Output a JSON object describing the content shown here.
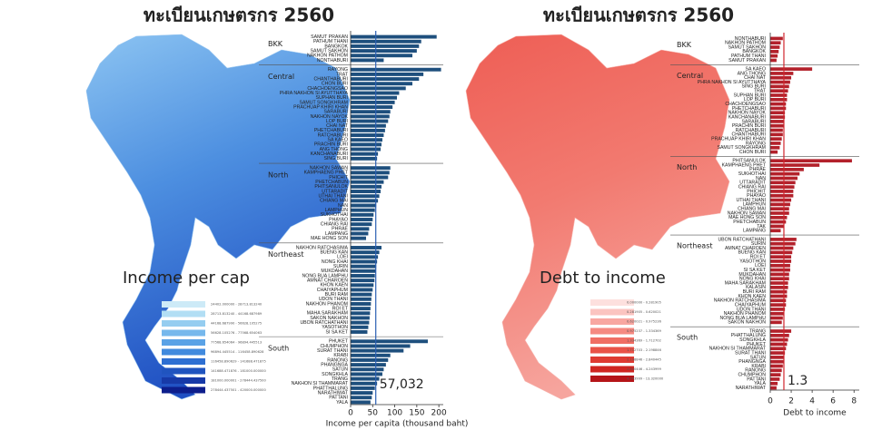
{
  "chart_data": [
    {
      "type": "bar",
      "orientation": "horizontal",
      "title": "ทะเบียนเกษตรกร 2560",
      "xlabel": "Income per capita (thousand baht)",
      "color": "#1e4f7d",
      "xlim": [
        0,
        210
      ],
      "xticks": [
        0,
        50,
        100,
        150,
        200
      ],
      "reference_line": {
        "value": 57.032,
        "label": "57,032",
        "color": "#2b5fb3"
      },
      "groups": [
        {
          "label": "BKK",
          "categories": [
            "SAMUT PRAKAN",
            "PATHUM THANI",
            "BANGKOK",
            "SAMUT SAKHON",
            "NAKHON PATHOM",
            "NONTHABURI"
          ],
          "values": [
            195,
            160,
            155,
            150,
            140,
            75
          ]
        },
        {
          "label": "Central",
          "categories": [
            "RAYONG",
            "TRAT",
            "CHANTHABURI",
            "CHON BURI",
            "CHACHOENGSAO",
            "PHRA NAKHON SI AYUTTHAYA",
            "SUPHAN BURI",
            "SAMUT SONGKHRAM",
            "PRACHUAP KHIRI KHAN",
            "SARABURI",
            "NAKHON NAYOK",
            "LOP BURI",
            "CHAI NAT",
            "PHETCHABURI",
            "RATCHABURI",
            "SA KAEO",
            "PRACHIN BURI",
            "ANG THONG",
            "KANCHANABURI",
            "SING BURI"
          ],
          "values": [
            205,
            165,
            155,
            140,
            125,
            110,
            105,
            100,
            95,
            90,
            88,
            85,
            80,
            78,
            75,
            72,
            70,
            68,
            62,
            60
          ]
        },
        {
          "label": "North",
          "categories": [
            "NAKHON SAWAN",
            "KAMPHAENG PHET",
            "PHICHIT",
            "PHETCHABUN",
            "PHITSANULOK",
            "UTTARADIT",
            "UTHAI THANI",
            "CHIANG MAI",
            "NAN",
            "LAMPHUN",
            "SUKHOTHAI",
            "PHAYAO",
            "CHIANG RAI",
            "PHRAE",
            "LAMPANG",
            "MAE HONG SON"
          ],
          "values": [
            90,
            88,
            85,
            75,
            70,
            68,
            65,
            62,
            58,
            55,
            52,
            50,
            48,
            42,
            40,
            35
          ]
        },
        {
          "label": "Northeast",
          "categories": [
            "NAKHON RATCHASIMA",
            "BUENG KAN",
            "LOEI",
            "NONG KHAI",
            "SURIN",
            "MUKDAHAN",
            "NONG BUA LAMPHU",
            "AMNAT CHAROEN",
            "KHON KAEN",
            "CHAIYAPHUM",
            "BURI RAM",
            "UDON THANI",
            "NAKHON PHANOM",
            "ROI ET",
            "MAHA SARAKHAM",
            "SAKON NAKHON",
            "UBON RATCHATHANI",
            "YASOTHON",
            "SI SA KET"
          ],
          "values": [
            70,
            65,
            62,
            60,
            58,
            57,
            55,
            54,
            52,
            50,
            48,
            47,
            46,
            45,
            44,
            43,
            42,
            40,
            38
          ]
        },
        {
          "label": "South",
          "categories": [
            "PHUKET",
            "CHUMPHON",
            "SURAT THANI",
            "KRABI",
            "RANONG",
            "PHANGNGA",
            "SATUN",
            "SONGKHLA",
            "TRANG",
            "NAKHON SI THAMMARAT",
            "PHATTHALUNG",
            "NARATHIWAT",
            "PATTANI",
            "YALA"
          ],
          "values": [
            175,
            135,
            120,
            90,
            85,
            80,
            75,
            72,
            65,
            60,
            55,
            50,
            48,
            45
          ]
        }
      ]
    },
    {
      "type": "bar",
      "orientation": "horizontal",
      "title": "ทะเบียนเกษตรกร 2560",
      "xlabel": "Debt to income",
      "color": "#b3212b",
      "xlim": [
        0,
        8.5
      ],
      "xticks": [
        0,
        2,
        4,
        6,
        8
      ],
      "reference_line": {
        "value": 1.3,
        "label": "1.3",
        "color": "#d0262e"
      },
      "groups": [
        {
          "label": "BKK",
          "categories": [
            "NONTHABURI",
            "NAKHON PATHOM",
            "SAMUT SAKHON",
            "BANGKOK",
            "PATHUM THANI",
            "SAMUT PRAKAN"
          ],
          "values": [
            1.2,
            1.0,
            0.9,
            0.8,
            0.7,
            0.6
          ]
        },
        {
          "label": "Central",
          "categories": [
            "SA KAEO",
            "ANG THONG",
            "CHAI NAT",
            "PHRA NAKHON SI AYUTTHAYA",
            "SING BURI",
            "TRAT",
            "SUPHAN BURI",
            "LOP BURI",
            "CHACHOENGSAO",
            "PHETCHABURI",
            "NAKHON NAYOK",
            "KANCHANABURI",
            "SARABURI",
            "PRACHIN BURI",
            "RATCHABURI",
            "CHANTHABURI",
            "PRACHUAP KHIRI KHAN",
            "RAYONG",
            "SAMUT SONGKHRAM",
            "CHON BURI"
          ],
          "values": [
            4.0,
            2.2,
            2.0,
            1.9,
            1.8,
            1.7,
            1.6,
            1.6,
            1.5,
            1.5,
            1.4,
            1.4,
            1.3,
            1.3,
            1.2,
            1.2,
            1.1,
            1.0,
            0.9,
            0.7
          ]
        },
        {
          "label": "North",
          "categories": [
            "PHITSANULOK",
            "KAMPHAENG PHET",
            "PHRAE",
            "SUKHOTHAI",
            "NAN",
            "UTTARADIT",
            "CHIANG RAI",
            "PHICHIT",
            "PHAYAO",
            "UTHAI THANI",
            "LAMPHUN",
            "CHIANG MAI",
            "NAKHON SAWAN",
            "MAE HONG SON",
            "PHETCHABUN",
            "TAK",
            "LAMPANG"
          ],
          "values": [
            7.8,
            4.7,
            3.2,
            2.8,
            2.6,
            2.4,
            2.3,
            2.2,
            2.2,
            2.0,
            1.9,
            1.8,
            1.8,
            1.6,
            1.5,
            1.3,
            1.0
          ]
        },
        {
          "label": "Northeast",
          "categories": [
            "UBON RATCHATHANI",
            "SURIN",
            "AMNAT CHAROEN",
            "BUENG KAN",
            "ROI ET",
            "YASOTHON",
            "LOEI",
            "SI SA KET",
            "MUKDAHAN",
            "NONG KHAI",
            "MAHA SARAKHAM",
            "KALASIN",
            "BURI RAM",
            "KHON KAEN",
            "NAKHON RATCHASIMA",
            "CHAIYAPHUM",
            "UDON THANI",
            "NAKHON PHANOM",
            "NONG BUA LAMPHU",
            "SAKON NAKHON"
          ],
          "values": [
            2.5,
            2.4,
            2.2,
            2.1,
            2.0,
            2.0,
            1.9,
            1.9,
            1.8,
            1.8,
            1.7,
            1.7,
            1.6,
            1.6,
            1.5,
            1.5,
            1.4,
            1.3,
            1.2,
            1.1
          ]
        },
        {
          "label": "South",
          "categories": [
            "TRANG",
            "PHATTHALUNG",
            "SONGKHLA",
            "PHUKET",
            "NAKHON SI THAMMARAT",
            "SURAT THANI",
            "SATUN",
            "PHANGNGA",
            "KRABI",
            "RANONG",
            "CHUMPHON",
            "PATTANI",
            "YALA",
            "NARATHIWAT"
          ],
          "values": [
            2.0,
            1.8,
            1.7,
            1.6,
            1.5,
            1.4,
            1.3,
            1.3,
            1.2,
            1.1,
            1.0,
            0.9,
            0.7,
            0.6
          ]
        }
      ]
    }
  ],
  "maps": [
    {
      "title": "Income per cap",
      "legend": [
        {
          "label": "24402.000000 - 28713.813240",
          "color": "#cdeaf7"
        },
        {
          "label": "28713.813240 - 44168.687989",
          "color": "#b2def4"
        },
        {
          "label": "44168.687990 - 56628.105275",
          "color": "#95cdf0"
        },
        {
          "label": "56628.105276 - 77568.654063",
          "color": "#76b8ec"
        },
        {
          "label": "77568.654064 - 96894.445513",
          "color": "#5aa2e6"
        },
        {
          "label": "96894.445514 - 116458.890628",
          "color": "#418ade"
        },
        {
          "label": "116458.890629 - 141688.471875",
          "color": "#2e6fd2"
        },
        {
          "label": "141688.471876 - 181000.000000",
          "color": "#2054bf"
        },
        {
          "label": "181000.000001 - 278444.437500",
          "color": "#173aa8"
        },
        {
          "label": "278444.437501 - 420000.000000",
          "color": "#0d1e8c"
        }
      ]
    },
    {
      "title": "Debt to income",
      "legend": [
        {
          "label": "0.000000 - 0.281905",
          "color": "#fde0de"
        },
        {
          "label": "0.281905 - 0.620021",
          "color": "#fbc4c0"
        },
        {
          "label": "0.620021 - 0.975236",
          "color": "#f8a7a1"
        },
        {
          "label": "0.975237 - 1.334369",
          "color": "#f58a82"
        },
        {
          "label": "1.334369 - 1.712702",
          "color": "#f06e64"
        },
        {
          "label": "1.712703 - 2.198846",
          "color": "#e95247"
        },
        {
          "label": "2.198846 - 2.840445",
          "color": "#de3a31"
        },
        {
          "label": "2.840446 - 4.243999",
          "color": "#cf2520"
        },
        {
          "label": "4.243999 - 13.320000",
          "color": "#b51418"
        }
      ]
    }
  ]
}
